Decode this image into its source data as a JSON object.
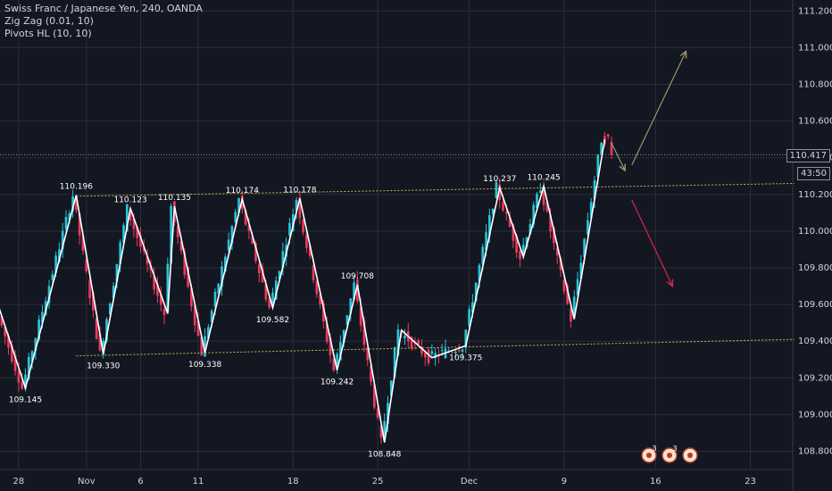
{
  "legend": {
    "symbol": "Swiss Franc / Japanese Yen, 240, OANDA",
    "indicator1": "Zig Zag (0.01, 10)",
    "indicator2": "Pivots HL (10, 10)"
  },
  "price_tag": {
    "last": "110.417",
    "countdown": "43:50"
  },
  "colors": {
    "background": "#131722",
    "grid": "#2a2e39",
    "up": "#26c6da",
    "down": "#ef3a5d",
    "zigzag": "#ffffff",
    "channel": "#c9b458",
    "arrow_up": "#9f9567",
    "arrow_down": "#e0234e"
  },
  "event_icons": [
    "3",
    "3",
    ""
  ],
  "chart_data": {
    "type": "candlestick",
    "title": "Swiss Franc / Japanese Yen, 240, OANDA",
    "y_axis": {
      "range": [
        108.7,
        111.26
      ],
      "ticks": [
        "111.200",
        "111.000",
        "110.800",
        "110.600",
        "110.400",
        "110.200",
        "110.000",
        "109.800",
        "109.600",
        "109.400",
        "109.200",
        "109.000",
        "108.800"
      ]
    },
    "x_axis": {
      "ticks": [
        {
          "label": "28",
          "i": 5
        },
        {
          "label": "Nov",
          "i": 25
        },
        {
          "label": "6",
          "i": 41
        },
        {
          "label": "11",
          "i": 58
        },
        {
          "label": "18",
          "i": 86
        },
        {
          "label": "25",
          "i": 111
        },
        {
          "label": "Dec",
          "i": 138
        },
        {
          "label": "9",
          "i": 166
        },
        {
          "label": "16",
          "i": 193
        },
        {
          "label": "23",
          "i": 221
        }
      ],
      "bars_visible": 234
    },
    "zigzag": [
      {
        "i": -2,
        "price": 109.65
      },
      {
        "i": 7,
        "price": 109.145
      },
      {
        "i": 22,
        "price": 110.196
      },
      {
        "i": 30,
        "price": 109.33
      },
      {
        "i": 38,
        "price": 110.123
      },
      {
        "i": 49,
        "price": 109.55
      },
      {
        "i": 51,
        "price": 110.135
      },
      {
        "i": 60,
        "price": 109.338
      },
      {
        "i": 71,
        "price": 110.174
      },
      {
        "i": 80,
        "price": 109.582
      },
      {
        "i": 88,
        "price": 110.178
      },
      {
        "i": 99,
        "price": 109.242
      },
      {
        "i": 105,
        "price": 109.708
      },
      {
        "i": 113,
        "price": 108.848
      },
      {
        "i": 118,
        "price": 109.46
      },
      {
        "i": 127,
        "price": 109.31
      },
      {
        "i": 137,
        "price": 109.375
      },
      {
        "i": 147,
        "price": 110.237
      },
      {
        "i": 154,
        "price": 109.86
      },
      {
        "i": 160,
        "price": 110.245
      },
      {
        "i": 169,
        "price": 109.52
      },
      {
        "i": 178,
        "price": 110.5
      }
    ],
    "pivot_labels": [
      {
        "i": 7,
        "price": 109.145,
        "label": "109.145",
        "pos": "below"
      },
      {
        "i": 22,
        "price": 110.196,
        "label": "110.196",
        "pos": "above"
      },
      {
        "i": 30,
        "price": 109.33,
        "label": "109.330",
        "pos": "below"
      },
      {
        "i": 38,
        "price": 110.123,
        "label": "110.123",
        "pos": "above"
      },
      {
        "i": 51,
        "price": 110.135,
        "label": "110.135",
        "pos": "above"
      },
      {
        "i": 60,
        "price": 109.338,
        "label": "109.338",
        "pos": "below"
      },
      {
        "i": 71,
        "price": 110.174,
        "label": "110.174",
        "pos": "above"
      },
      {
        "i": 80,
        "price": 109.582,
        "label": "109.582",
        "pos": "below"
      },
      {
        "i": 88,
        "price": 110.178,
        "label": "110.178",
        "pos": "above"
      },
      {
        "i": 99,
        "price": 109.242,
        "label": "109.242",
        "pos": "below"
      },
      {
        "i": 105,
        "price": 109.708,
        "label": "109.708",
        "pos": "above"
      },
      {
        "i": 113,
        "price": 108.848,
        "label": "108.848",
        "pos": "below"
      },
      {
        "i": 137,
        "price": 109.375,
        "label": "109.375",
        "pos": "below"
      },
      {
        "i": 147,
        "price": 110.237,
        "label": "110.237",
        "pos": "above"
      },
      {
        "i": 160,
        "price": 110.245,
        "label": "110.245",
        "pos": "above"
      }
    ],
    "channel_lines": [
      {
        "from": {
          "i": 22,
          "price": 110.19
        },
        "to": {
          "i": 234,
          "price": 110.26
        }
      },
      {
        "from": {
          "i": 22,
          "price": 109.32
        },
        "to": {
          "i": 234,
          "price": 109.41
        }
      }
    ],
    "projection_arrows": [
      {
        "from": {
          "i": 180,
          "price": 110.48
        },
        "to": {
          "i": 184,
          "price": 110.33
        },
        "color": "arrow_up"
      },
      {
        "from": {
          "i": 186,
          "price": 110.36
        },
        "to": {
          "i": 202,
          "price": 110.98
        },
        "color": "arrow_up"
      },
      {
        "from": {
          "i": 186,
          "price": 110.17
        },
        "to": {
          "i": 198,
          "price": 109.7
        },
        "color": "arrow_down"
      }
    ],
    "last_price": 110.417
  }
}
